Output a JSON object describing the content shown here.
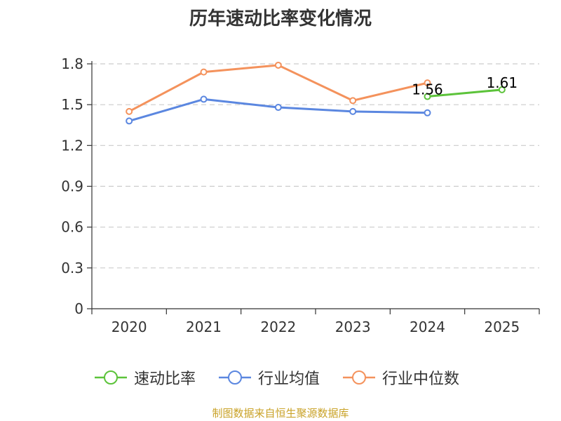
{
  "footer": {
    "text": "制图数据来自恒生聚源数据库",
    "color": "#c9a227"
  },
  "colors": {
    "axis": "#333333",
    "grid": "#cccccc"
  },
  "chart_data": {
    "type": "line",
    "title": "历年速动比率变化情况",
    "categories": [
      "2020",
      "2021",
      "2022",
      "2023",
      "2024",
      "2025"
    ],
    "ylim": [
      0,
      1.8
    ],
    "yticks": [
      0,
      0.3,
      0.6,
      0.9,
      1.2,
      1.5,
      1.8
    ],
    "ytick_labels": [
      "0",
      "0.3",
      "0.6",
      "0.9",
      "1.2",
      "1.5",
      "1.8"
    ],
    "grid": true,
    "legend_position": "bottom",
    "series": [
      {
        "name": "速动比率",
        "color": "#5cc33a",
        "marker": "circle",
        "values": [
          null,
          null,
          null,
          null,
          1.56,
          1.61
        ],
        "data_labels": [
          null,
          null,
          null,
          null,
          "1.56",
          "1.61"
        ]
      },
      {
        "name": "行业均值",
        "color": "#5b87e0",
        "marker": "circle",
        "values": [
          1.38,
          1.54,
          1.48,
          1.45,
          1.44,
          null
        ]
      },
      {
        "name": "行业中位数",
        "color": "#f4925c",
        "marker": "circle",
        "values": [
          1.45,
          1.74,
          1.79,
          1.53,
          1.66,
          null
        ]
      }
    ]
  }
}
